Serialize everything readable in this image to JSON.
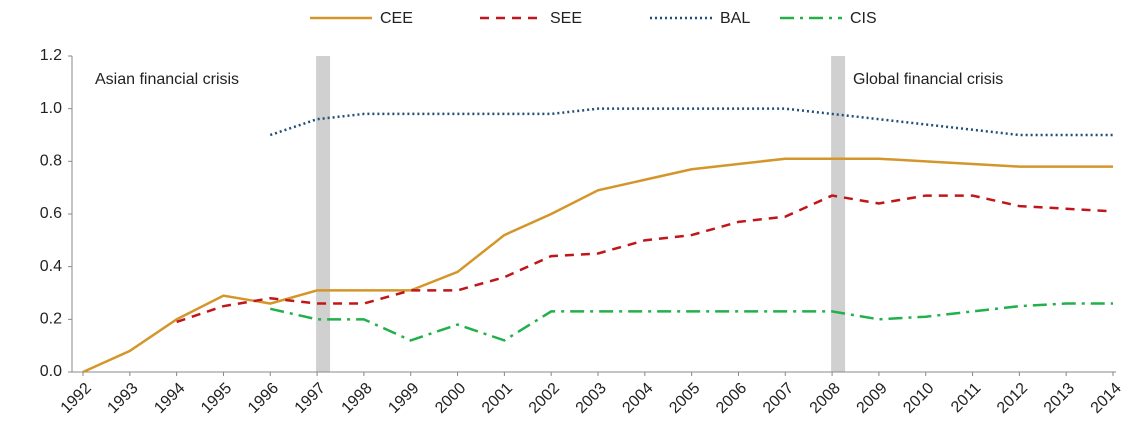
{
  "chart_data": {
    "type": "line",
    "categories": [
      "1992",
      "1993",
      "1994",
      "1995",
      "1996",
      "1997",
      "1998",
      "1999",
      "2000",
      "2001",
      "2002",
      "2003",
      "2004",
      "2005",
      "2006",
      "2007",
      "2008",
      "2009",
      "2010",
      "2011",
      "2012",
      "2013",
      "2014"
    ],
    "series": [
      {
        "name": "CEE",
        "color": "#d4962a",
        "style": "solid",
        "values": [
          0,
          0.08,
          0.2,
          0.29,
          0.26,
          0.31,
          0.31,
          0.31,
          0.38,
          0.52,
          0.6,
          0.69,
          0.73,
          0.77,
          0.79,
          0.81,
          0.81,
          0.81,
          0.8,
          0.79,
          0.78,
          0.78,
          0.78
        ]
      },
      {
        "name": "SEE",
        "color": "#c0161a",
        "style": "dashed",
        "values": [
          null,
          null,
          0.19,
          0.25,
          0.28,
          0.26,
          0.26,
          0.31,
          0.31,
          0.36,
          0.44,
          0.45,
          0.5,
          0.52,
          0.57,
          0.59,
          0.67,
          0.64,
          0.67,
          0.67,
          0.63,
          0.62,
          0.61
        ]
      },
      {
        "name": "BAL",
        "color": "#1f4e79",
        "style": "dotted",
        "values": [
          null,
          null,
          null,
          null,
          0.9,
          0.96,
          0.98,
          0.98,
          0.98,
          0.98,
          0.98,
          1.0,
          1.0,
          1.0,
          1.0,
          1.0,
          0.98,
          0.96,
          0.94,
          0.92,
          0.9,
          0.9,
          0.9
        ]
      },
      {
        "name": "CIS",
        "color": "#22b04b",
        "style": "dashdot",
        "values": [
          null,
          null,
          null,
          null,
          0.24,
          0.2,
          0.2,
          0.12,
          0.18,
          0.12,
          0.23,
          0.23,
          0.23,
          0.23,
          0.23,
          0.23,
          0.23,
          0.2,
          0.21,
          0.23,
          0.25,
          0.26,
          0.26
        ]
      }
    ],
    "bands": [
      {
        "x": "1997",
        "label": "Asian financial crisis"
      },
      {
        "x": "2008",
        "label": "Global financial crisis"
      }
    ],
    "ylim": [
      0,
      1.2
    ],
    "yticks": [
      {
        "value": 0,
        "label": "0.0"
      },
      0.2,
      0.4,
      0.6,
      0.8,
      {
        "value": 1,
        "label": "1.0"
      },
      1.2
    ],
    "grid": true,
    "legend": "top"
  }
}
